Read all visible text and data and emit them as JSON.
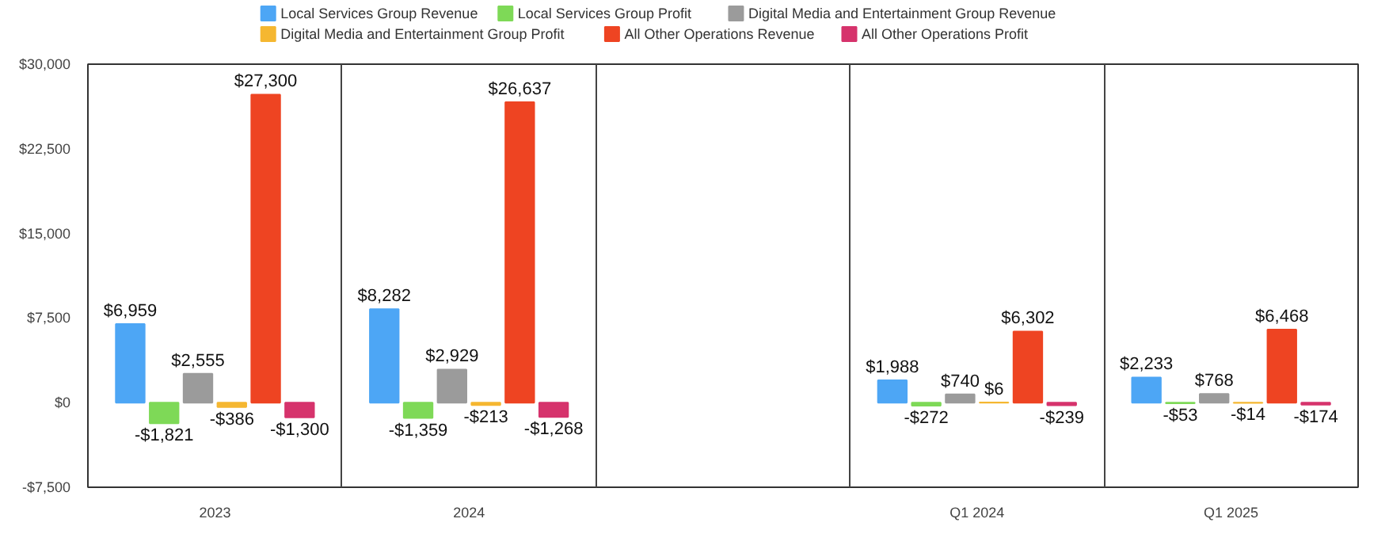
{
  "chart_data": {
    "type": "bar",
    "categories": [
      "2023",
      "2024",
      null,
      "Q1 2024",
      "Q1 2025"
    ],
    "series": [
      {
        "name": "Local Services Group Revenue",
        "color": "#4da6f5",
        "values": [
          6959,
          8282,
          null,
          1988,
          2233
        ],
        "value_labels": [
          "$6,959",
          "$8,282",
          null,
          "$1,988",
          "$2,233"
        ]
      },
      {
        "name": "Local Services Group Profit",
        "color": "#7ed957",
        "values": [
          -1821,
          -1359,
          null,
          -272,
          -53
        ],
        "value_labels": [
          "-$1,821",
          "-$1,359",
          null,
          "-$272",
          "-$53"
        ]
      },
      {
        "name": "Digital Media and Entertainment Group Revenue",
        "color": "#9b9b9b",
        "values": [
          2555,
          2929,
          null,
          740,
          768
        ],
        "value_labels": [
          "$2,555",
          "$2,929",
          null,
          "$740",
          "$768"
        ]
      },
      {
        "name": "Digital Media and Entertainment Group Profit",
        "color": "#f5b731",
        "values": [
          -386,
          -213,
          null,
          6,
          -14
        ],
        "value_labels": [
          "-$386",
          "-$213",
          null,
          "$6",
          "-$14"
        ]
      },
      {
        "name": "All Other Operations Revenue",
        "color": "#ee4422",
        "values": [
          27300,
          26637,
          null,
          6302,
          6468
        ],
        "value_labels": [
          "$27,300",
          "$26,637",
          null,
          "$6,302",
          "$6,468"
        ]
      },
      {
        "name": "All Other Operations Profit",
        "color": "#d6336c",
        "values": [
          -1300,
          -1268,
          null,
          -239,
          -174
        ],
        "value_labels": [
          "-$1,300",
          "-$1,268",
          null,
          "-$239",
          "-$174"
        ]
      }
    ],
    "ylim": [
      -7500,
      30000
    ],
    "yticks": [
      {
        "value": -7500,
        "label": "-$7,500"
      },
      {
        "value": 0,
        "label": "$0"
      },
      {
        "value": 7500,
        "label": "$7,500"
      },
      {
        "value": 15000,
        "label": "$15,000"
      },
      {
        "value": 22500,
        "label": "$22,500"
      },
      {
        "value": 30000,
        "label": "$30,000"
      }
    ],
    "grid": "x",
    "legend": "top"
  }
}
